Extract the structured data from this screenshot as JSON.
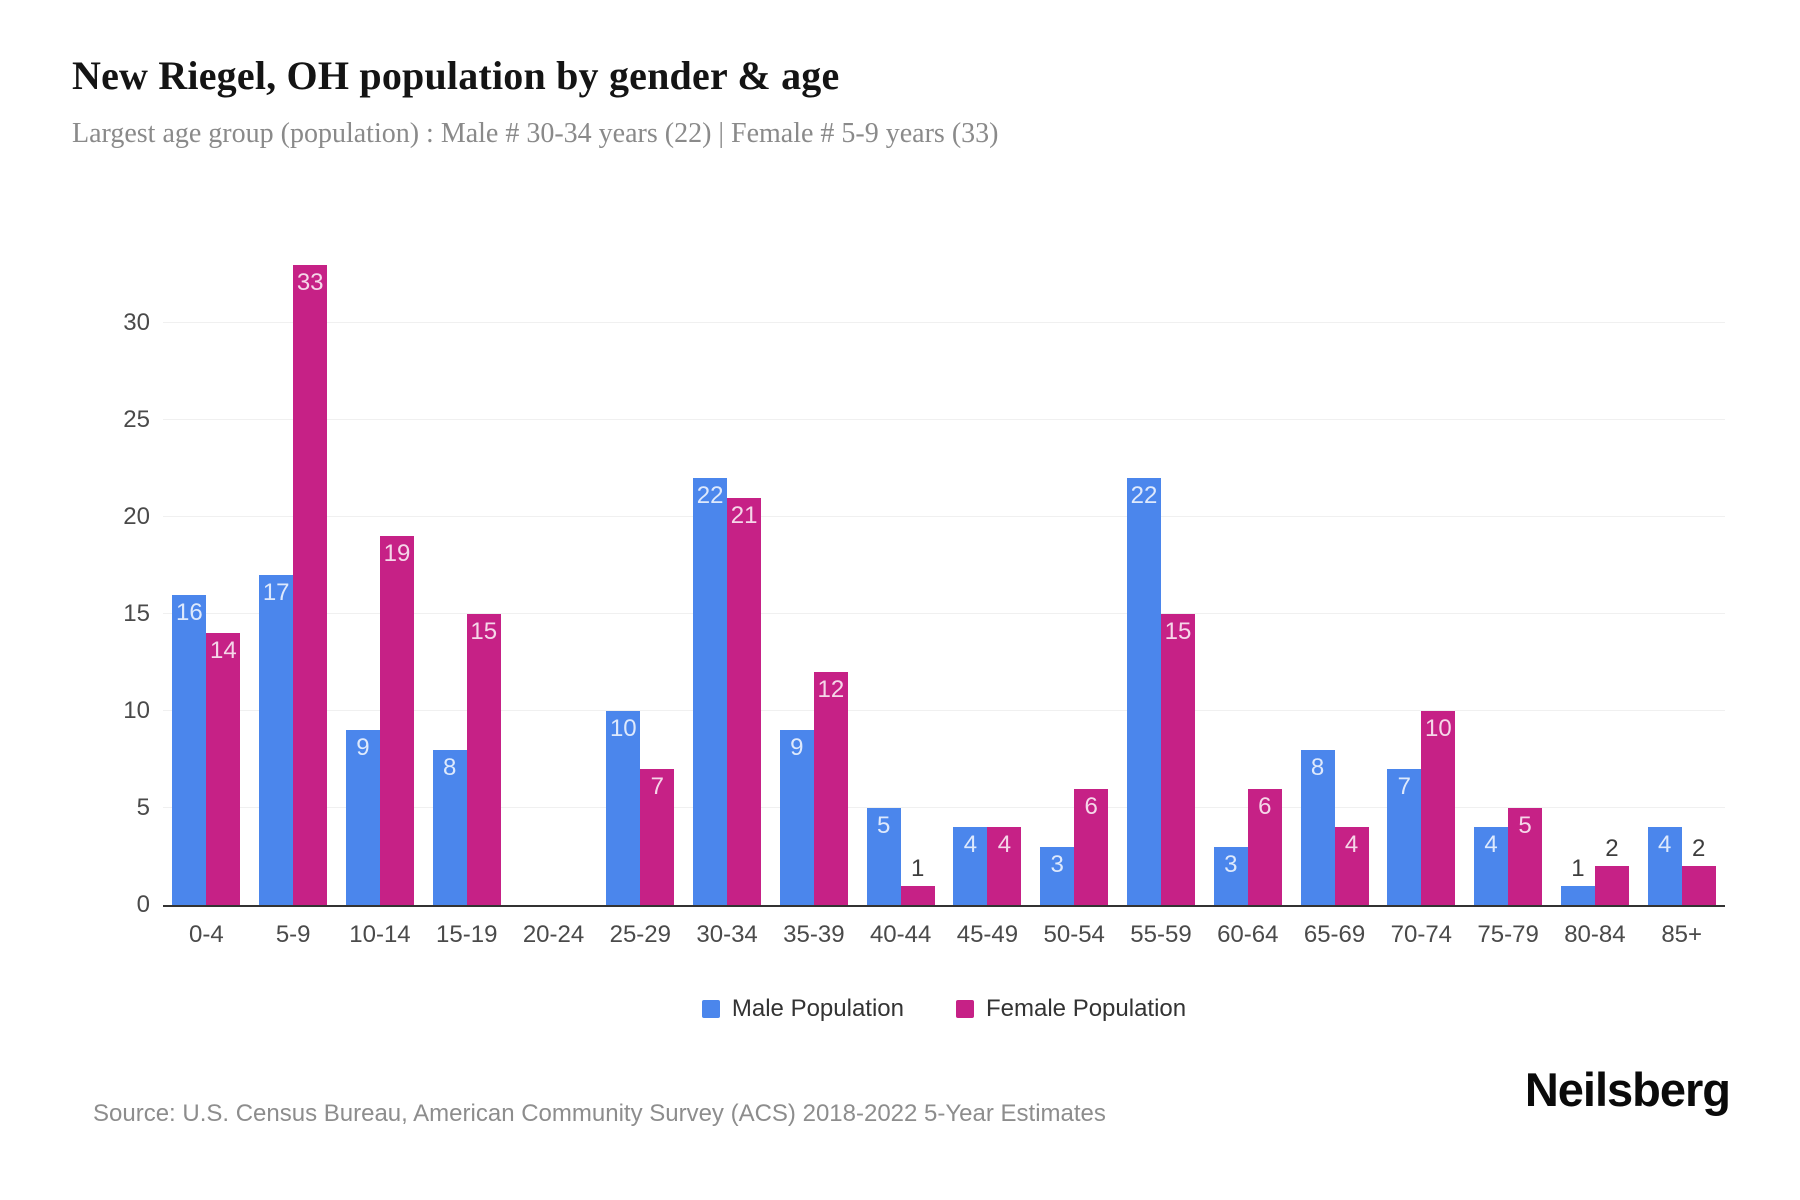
{
  "header": {
    "title": "New Riegel, OH population by gender & age",
    "subtitle": "Largest age group (population) : Male # 30-34 years (22) | Female # 5-9 years (33)"
  },
  "chart_data": {
    "type": "bar",
    "categories": [
      "0-4",
      "5-9",
      "10-14",
      "15-19",
      "20-24",
      "25-29",
      "30-34",
      "35-39",
      "40-44",
      "45-49",
      "50-54",
      "55-59",
      "60-64",
      "65-69",
      "70-74",
      "75-79",
      "80-84",
      "85+"
    ],
    "series": [
      {
        "name": "Male Population",
        "color": "#4b86ec",
        "values": [
          16,
          17,
          9,
          8,
          0,
          10,
          22,
          9,
          5,
          4,
          3,
          22,
          3,
          8,
          7,
          4,
          1,
          4
        ]
      },
      {
        "name": "Female Population",
        "color": "#c62186",
        "values": [
          14,
          33,
          19,
          15,
          0,
          7,
          21,
          12,
          1,
          4,
          6,
          15,
          6,
          4,
          10,
          5,
          2,
          2
        ]
      }
    ],
    "title": "New Riegel, OH population by gender & age",
    "xlabel": "",
    "ylabel": "",
    "ylim": [
      0,
      33.4
    ],
    "yticks": [
      0,
      5,
      10,
      15,
      20,
      25,
      30
    ],
    "grid": true,
    "legend_position": "bottom",
    "bar_label_inside_min_value": 3,
    "colors": {
      "male": "#4b86ec",
      "female": "#c62186",
      "gridline": "#f0f0f0",
      "axis_line": "#333333",
      "tick_label": "#4a4a4a",
      "value_label_inside": "rgba(255,255,255,0.82)",
      "value_label_above": "#3d3d3d"
    }
  },
  "legend": {
    "items": [
      {
        "label": "Male Population",
        "color": "#4b86ec"
      },
      {
        "label": "Female Population",
        "color": "#c62186"
      }
    ]
  },
  "footer": {
    "source": "Source: U.S. Census Bureau, American Community Survey (ACS) 2018-2022 5-Year Estimates",
    "brand": "Neilsberg"
  }
}
